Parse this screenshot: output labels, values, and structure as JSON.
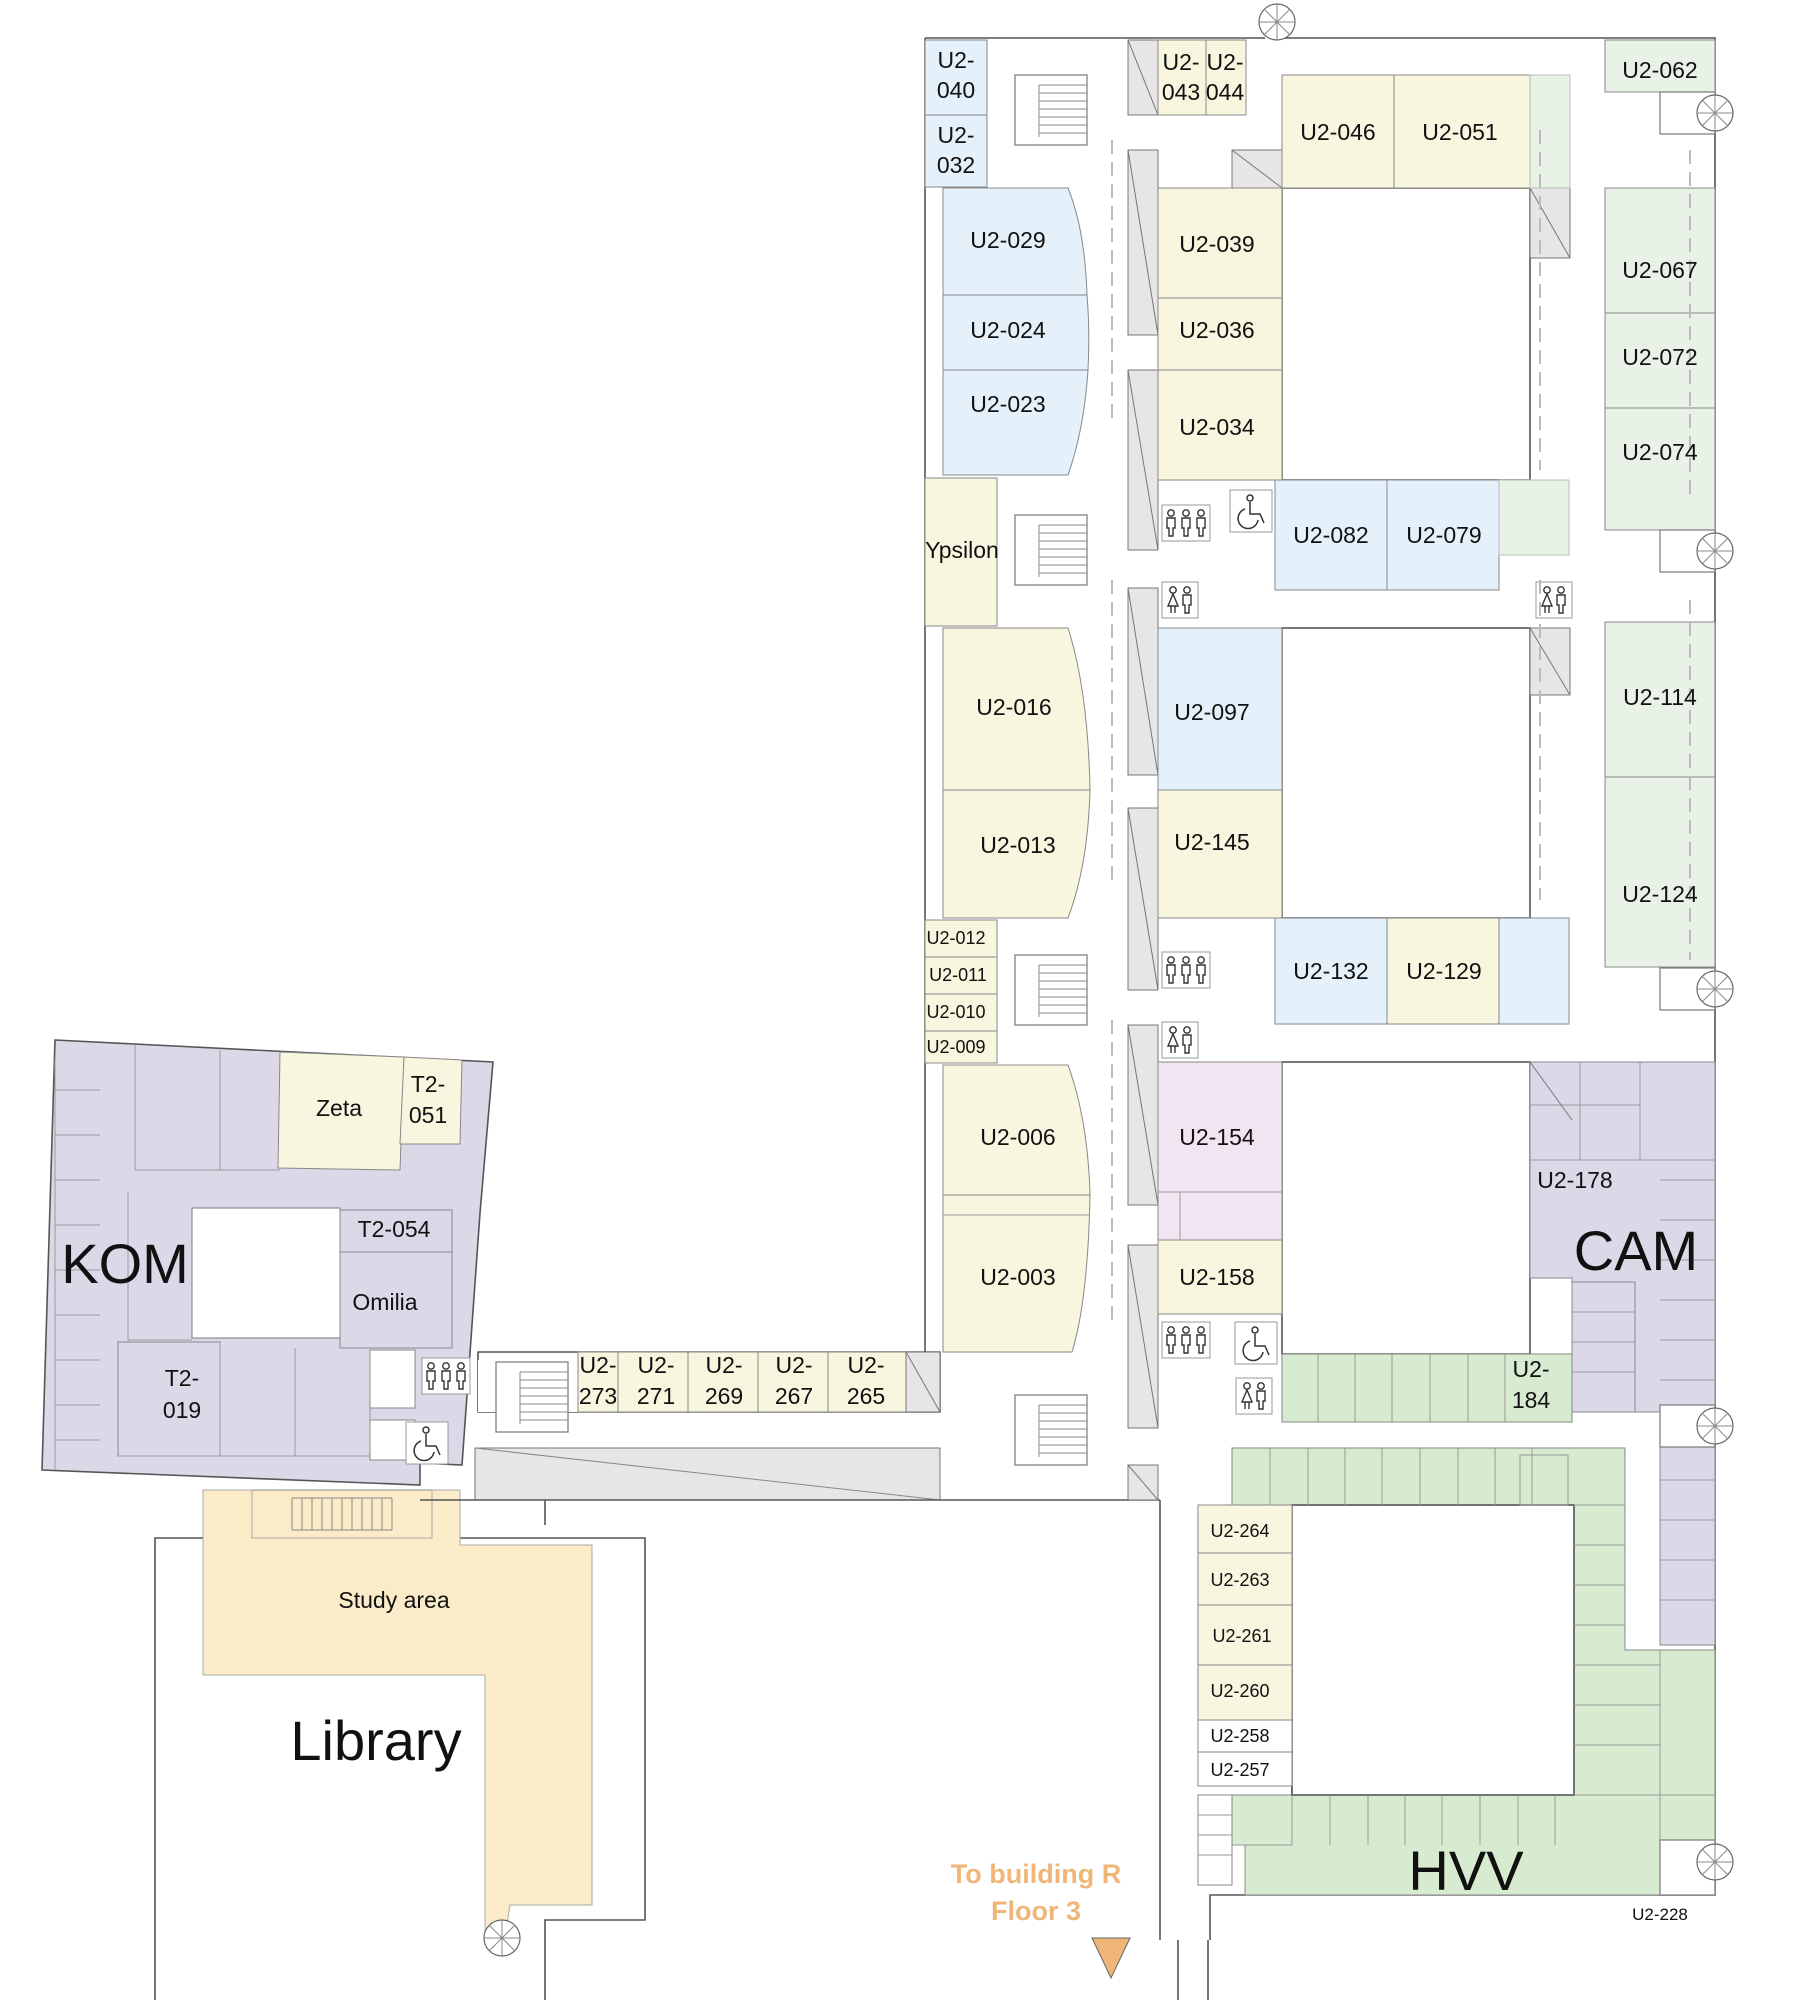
{
  "colors": {
    "yellow": "#f8f6de",
    "blue": "#e4f1fa",
    "green": "#d6ebd0",
    "lightgreen": "#e9f2e6",
    "purple": "#dcd8e8",
    "pink": "#f2e4f1",
    "orange": "#fcebc8",
    "orange_text": "#efb677",
    "wall": "#555555",
    "grey": "#e8e8e8"
  },
  "zones": {
    "kom": "KOM",
    "cam": "CAM",
    "hvv": "HVV",
    "library": "Library",
    "study_area": "Study area"
  },
  "directions": {
    "line1": "To building R",
    "line2": "Floor 3"
  },
  "rooms": {
    "u2_040": [
      "U2-",
      "040"
    ],
    "u2_032": [
      "U2-",
      "032"
    ],
    "u2_043": [
      "U2-",
      "043"
    ],
    "u2_044": [
      "U2-",
      "044"
    ],
    "u2_062": "U2-062",
    "u2_046": "U2-046",
    "u2_051": "U2-051",
    "u2_029": "U2-029",
    "u2_024": "U2-024",
    "u2_023": "U2-023",
    "u2_039": "U2-039",
    "u2_036": "U2-036",
    "u2_034": "U2-034",
    "u2_067": "U2-067",
    "u2_072": "U2-072",
    "u2_074": "U2-074",
    "ypsilon": "Ypsilon",
    "u2_082": "U2-082",
    "u2_079": "U2-079",
    "u2_016": "U2-016",
    "u2_013": "U2-013",
    "u2_097": "U2-097",
    "u2_145": "U2-145",
    "u2_114": "U2-114",
    "u2_124": "U2-124",
    "u2_012": "U2-012",
    "u2_011": "U2-011",
    "u2_010": "U2-010",
    "u2_009": "U2-009",
    "u2_132": "U2-132",
    "u2_129": "U2-129",
    "zeta": "Zeta",
    "t2_051": [
      "T2-",
      "051"
    ],
    "u2_006": "U2-006",
    "u2_154": "U2-154",
    "u2_178": "U2-178",
    "t2_054": "T2-054",
    "omilia": "Omilia",
    "u2_003": "U2-003",
    "u2_158": "U2-158",
    "t2_019": [
      "T2-",
      "019"
    ],
    "u2_273": [
      "U2-",
      "273"
    ],
    "u2_271": [
      "U2-",
      "271"
    ],
    "u2_269": [
      "U2-",
      "269"
    ],
    "u2_267": [
      "U2-",
      "267"
    ],
    "u2_265": [
      "U2-",
      "265"
    ],
    "u2_184": [
      "U2-",
      "184"
    ],
    "u2_264": "U2-264",
    "u2_263": "U2-263",
    "u2_261": "U2-261",
    "u2_260": "U2-260",
    "u2_258": "U2-258",
    "u2_257": "U2-257",
    "u2_228": "U2-228"
  },
  "icons": {
    "restroom": "restroom-icon",
    "accessible": "wheelchair-icon",
    "staircase": "staircase-icon",
    "spiral": "spiral-stair-icon",
    "arrow": "triangle-down-icon"
  }
}
